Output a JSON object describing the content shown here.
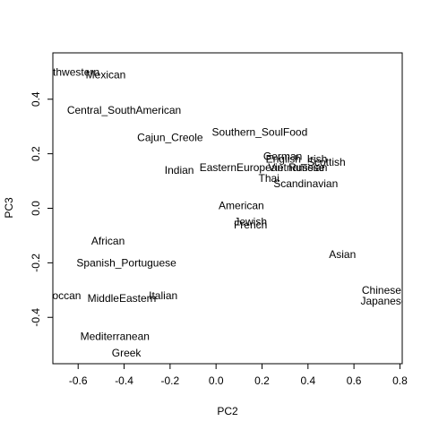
{
  "chart_data": {
    "type": "scatter",
    "title": "",
    "xlabel": "PC2",
    "ylabel": "PC3",
    "xlim": [
      -0.71,
      0.81
    ],
    "ylim": [
      -0.57,
      0.57
    ],
    "xticks": [
      -0.6,
      -0.4,
      -0.2,
      0.0,
      0.2,
      0.4,
      0.6,
      0.8
    ],
    "xtick_labels": [
      "-0.6",
      "-0.4",
      "-0.2",
      "0.0",
      "0.2",
      "0.4",
      "0.6",
      "0.8"
    ],
    "yticks": [
      -0.4,
      -0.2,
      0.0,
      0.2,
      0.4
    ],
    "ytick_labels": [
      "-0.4",
      "-0.2",
      "0.0",
      "0.2",
      "0.4"
    ],
    "grid": false,
    "points": [
      {
        "label": "Southwestern",
        "x": -0.65,
        "y": 0.5
      },
      {
        "label": "Mexican",
        "x": -0.48,
        "y": 0.49
      },
      {
        "label": "Central_SouthAmerican",
        "x": -0.4,
        "y": 0.36
      },
      {
        "label": "Cajun_Creole",
        "x": -0.2,
        "y": 0.26
      },
      {
        "label": "Southern_SoulFood",
        "x": 0.19,
        "y": 0.28
      },
      {
        "label": "German",
        "x": 0.29,
        "y": 0.19
      },
      {
        "label": "English_Irish",
        "x": 0.35,
        "y": 0.18
      },
      {
        "label": "Scottish",
        "x": 0.48,
        "y": 0.17
      },
      {
        "label": "Vietnamese",
        "x": 0.35,
        "y": 0.15
      },
      {
        "label": "Russian",
        "x": 0.4,
        "y": 0.15
      },
      {
        "label": "EasternEuropean",
        "x": 0.11,
        "y": 0.15
      },
      {
        "label": "Indian",
        "x": -0.16,
        "y": 0.14
      },
      {
        "label": "Thai",
        "x": 0.23,
        "y": 0.11
      },
      {
        "label": "Scandinavian",
        "x": 0.39,
        "y": 0.09
      },
      {
        "label": "American",
        "x": 0.11,
        "y": 0.01
      },
      {
        "label": "Jewish",
        "x": 0.15,
        "y": -0.05
      },
      {
        "label": "French",
        "x": 0.15,
        "y": -0.06
      },
      {
        "label": "Asian",
        "x": 0.55,
        "y": -0.17
      },
      {
        "label": "African",
        "x": -0.47,
        "y": -0.12
      },
      {
        "label": "Spanish_Portuguese",
        "x": -0.39,
        "y": -0.2
      },
      {
        "label": "Chinese",
        "x": 0.72,
        "y": -0.3
      },
      {
        "label": "Japanese",
        "x": 0.73,
        "y": -0.34
      },
      {
        "label": "Moroccan",
        "x": -0.69,
        "y": -0.32
      },
      {
        "label": "MiddleEastern",
        "x": -0.41,
        "y": -0.33
      },
      {
        "label": "Italian",
        "x": -0.23,
        "y": -0.32
      },
      {
        "label": "Mediterranean",
        "x": -0.44,
        "y": -0.47
      },
      {
        "label": "Greek",
        "x": -0.39,
        "y": -0.53
      }
    ]
  }
}
